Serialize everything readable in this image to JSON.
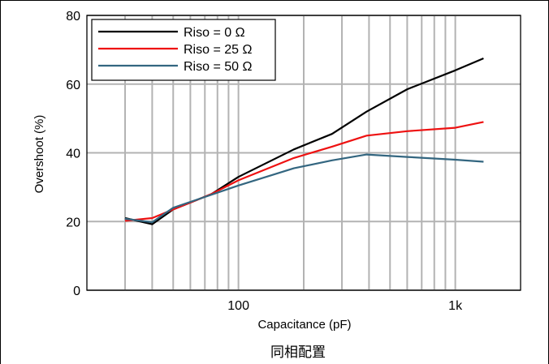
{
  "chart_data": {
    "type": "line",
    "title": "",
    "caption": "同相配置",
    "xlabel": "Capacitance (pF)",
    "ylabel": "Overshoot (%)",
    "xscale": "log",
    "xlim": [
      20,
      2000
    ],
    "ylim": [
      0,
      80
    ],
    "xticks": [
      {
        "value": 100,
        "label": "100"
      },
      {
        "value": 1000,
        "label": "1k"
      }
    ],
    "yticks": [
      {
        "value": 0,
        "label": "0"
      },
      {
        "value": 20,
        "label": "20"
      },
      {
        "value": 40,
        "label": "40"
      },
      {
        "value": 60,
        "label": "60"
      },
      {
        "value": 80,
        "label": "80"
      }
    ],
    "grid": true,
    "legend_position": "top-left",
    "series": [
      {
        "name": "Riso = 0 Ω",
        "color": "#000000",
        "x": [
          30,
          40,
          50,
          75,
          100,
          180,
          270,
          390,
          600,
          1000,
          1350
        ],
        "y": [
          21,
          19.2,
          23.5,
          28,
          33,
          41,
          45.5,
          52,
          58.5,
          64,
          67.5
        ]
      },
      {
        "name": "Riso = 25 Ω",
        "color": "#ee1111",
        "x": [
          30,
          40,
          50,
          75,
          100,
          180,
          270,
          390,
          600,
          1000,
          1350
        ],
        "y": [
          20.2,
          21,
          23.5,
          28,
          32,
          38.5,
          41.8,
          45,
          46.3,
          47.3,
          49
        ]
      },
      {
        "name": "Riso = 50 Ω",
        "color": "#336680",
        "x": [
          30,
          40,
          50,
          75,
          100,
          180,
          270,
          390,
          600,
          1000,
          1350
        ],
        "y": [
          20.8,
          19.8,
          24,
          27.8,
          30.5,
          35.5,
          37.8,
          39.5,
          38.8,
          38,
          37.4
        ]
      }
    ]
  }
}
